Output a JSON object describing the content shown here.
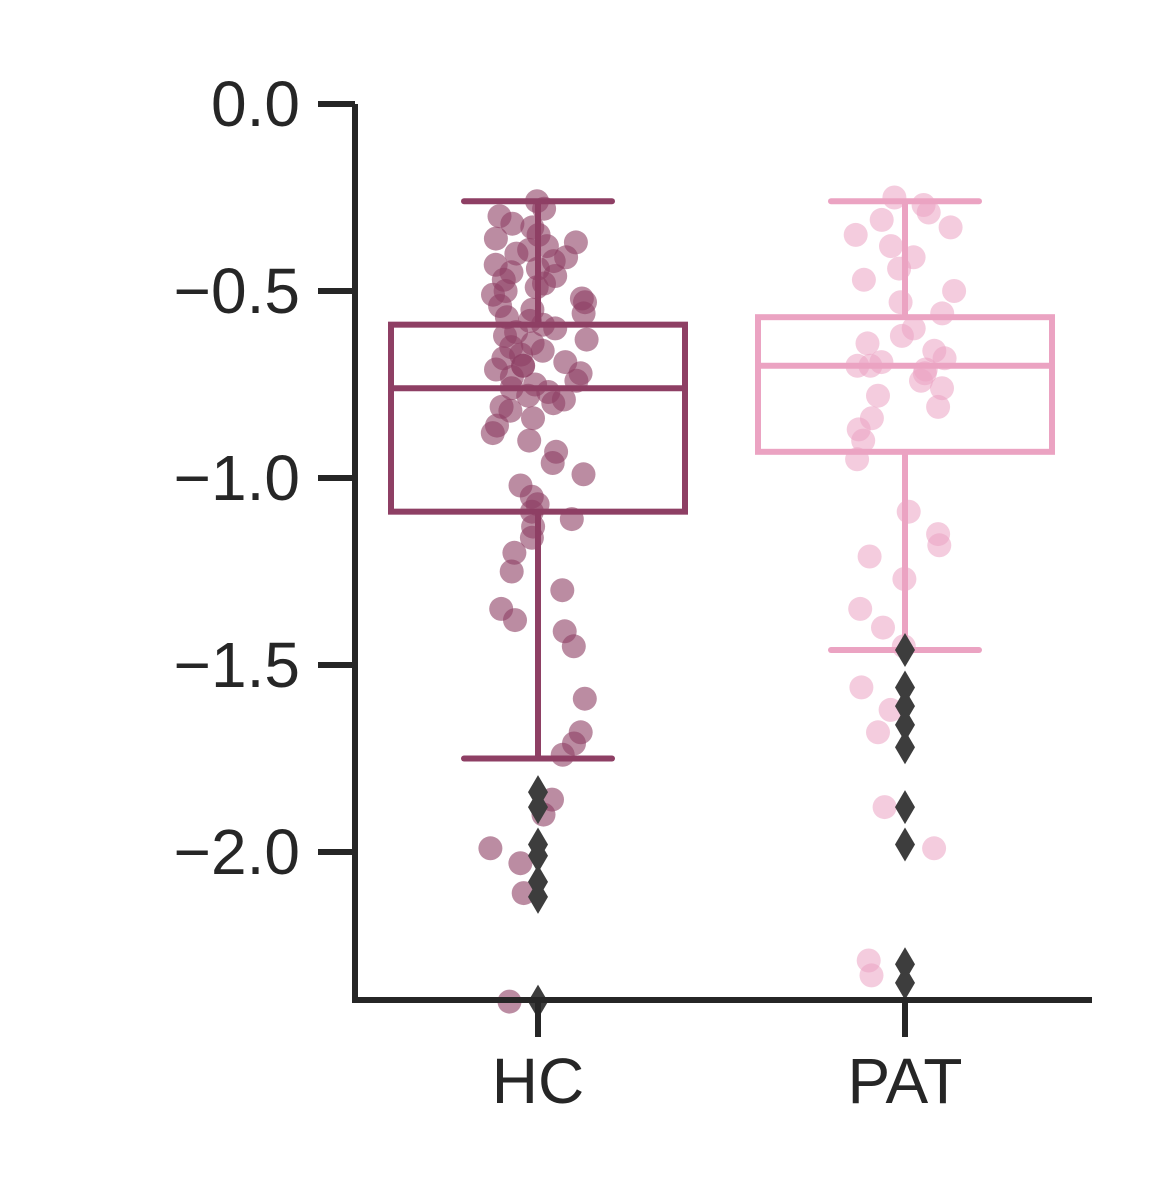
{
  "chart_data": {
    "type": "box",
    "title": "",
    "xlabel": "",
    "ylabel": "",
    "categories": [
      "HC",
      "PAT"
    ],
    "ylim": [
      -2.4,
      0.0
    ],
    "yticks": [
      0.0,
      -0.5,
      -1.0,
      -1.5,
      -2.0
    ],
    "ytick_labels": [
      "0.0",
      "−0.5",
      "−1.0",
      "−1.5",
      "−2.0"
    ],
    "grid": false,
    "legend": "none",
    "series": [
      {
        "category": "HC",
        "color": "#8e3f64",
        "q1": -1.09,
        "median": -0.76,
        "q3": -0.59,
        "whisker_low": -1.75,
        "whisker_high": -0.26,
        "outliers": [
          -1.84,
          -1.88,
          -1.98,
          -2.01,
          -2.08,
          -2.12,
          -2.4
        ],
        "points": [
          -0.26,
          -0.28,
          -0.3,
          -0.32,
          -0.33,
          -0.35,
          -0.36,
          -0.37,
          -0.38,
          -0.39,
          -0.4,
          -0.41,
          -0.42,
          -0.43,
          -0.44,
          -0.45,
          -0.46,
          -0.47,
          -0.48,
          -0.49,
          -0.5,
          -0.51,
          -0.52,
          -0.53,
          -0.54,
          -0.55,
          -0.56,
          -0.57,
          -0.58,
          -0.59,
          -0.6,
          -0.61,
          -0.62,
          -0.63,
          -0.64,
          -0.65,
          -0.66,
          -0.67,
          -0.68,
          -0.69,
          -0.7,
          -0.7,
          -0.71,
          -0.72,
          -0.73,
          -0.74,
          -0.75,
          -0.76,
          -0.77,
          -0.78,
          -0.79,
          -0.8,
          -0.81,
          -0.82,
          -0.84,
          -0.86,
          -0.88,
          -0.9,
          -0.93,
          -0.96,
          -0.99,
          -1.02,
          -1.05,
          -1.07,
          -1.09,
          -1.11,
          -1.13,
          -1.16,
          -1.2,
          -1.25,
          -1.3,
          -1.35,
          -1.38,
          -1.41,
          -1.45,
          -1.59,
          -1.68,
          -1.71,
          -1.74,
          -1.86,
          -1.9,
          -1.99,
          -2.03,
          -2.11,
          -2.4
        ]
      },
      {
        "category": "PAT",
        "color": "#eba3c2",
        "q1": -0.93,
        "median": -0.7,
        "q3": -0.57,
        "whisker_low": -1.46,
        "whisker_high": -0.26,
        "outliers": [
          -1.46,
          -1.56,
          -1.61,
          -1.66,
          -1.72,
          -1.88,
          -1.98,
          -2.3,
          -2.35
        ],
        "points": [
          -0.25,
          -0.27,
          -0.29,
          -0.31,
          -0.33,
          -0.35,
          -0.38,
          -0.41,
          -0.44,
          -0.47,
          -0.5,
          -0.53,
          -0.56,
          -0.6,
          -0.62,
          -0.64,
          -0.66,
          -0.68,
          -0.69,
          -0.7,
          -0.7,
          -0.71,
          -0.72,
          -0.74,
          -0.76,
          -0.78,
          -0.81,
          -0.84,
          -0.87,
          -0.9,
          -0.95,
          -1.09,
          -1.15,
          -1.18,
          -1.21,
          -1.27,
          -1.35,
          -1.4,
          -1.45,
          -1.56,
          -1.62,
          -1.68,
          -1.88,
          -1.99,
          -2.29,
          -2.33
        ]
      }
    ]
  }
}
